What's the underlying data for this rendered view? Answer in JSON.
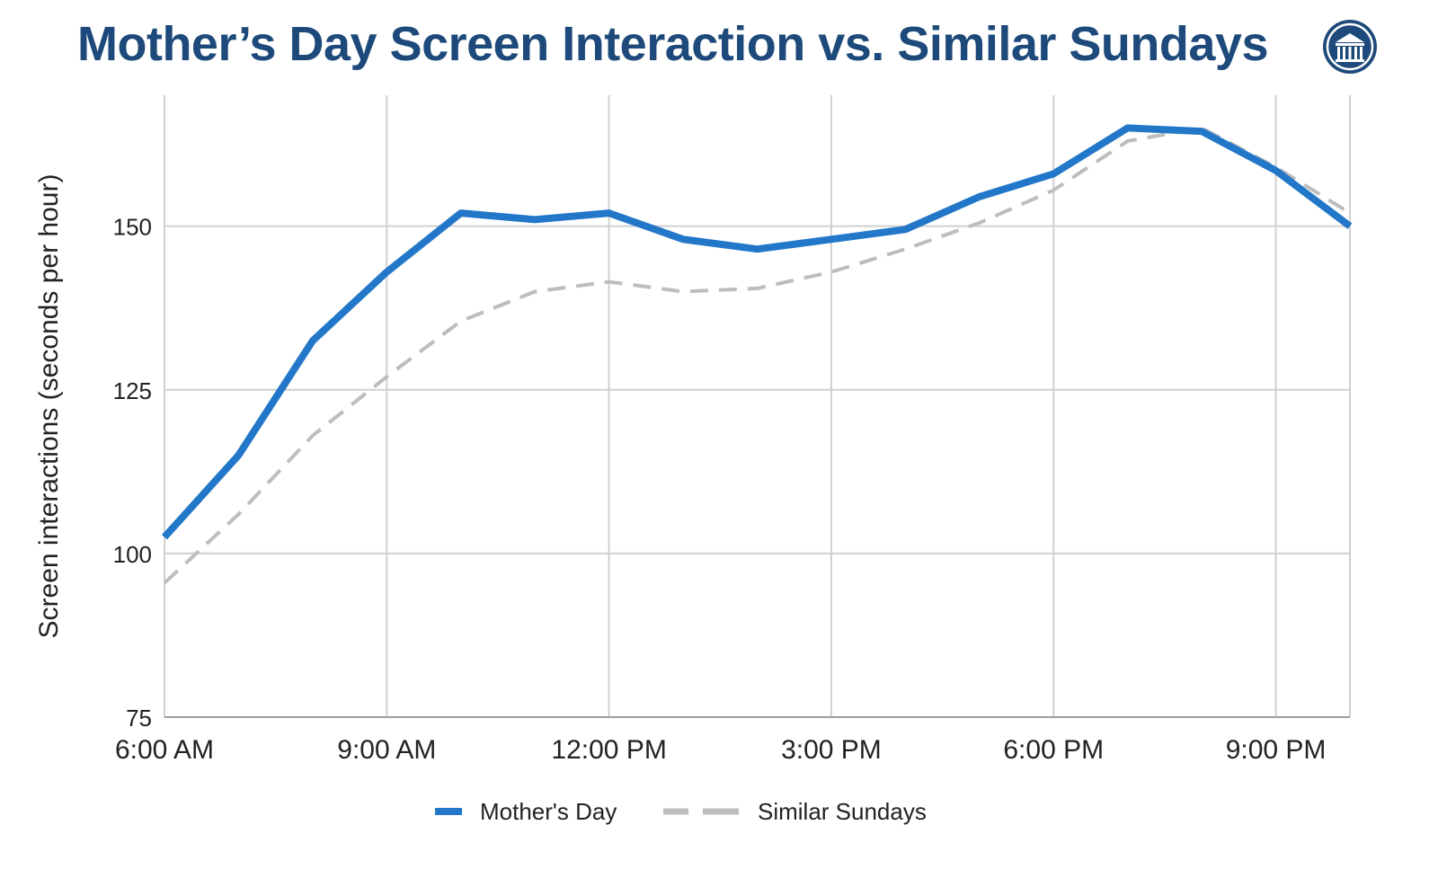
{
  "title": "Mother’s Day Screen Interaction vs. Similar Sundays",
  "logo_icon": "university-column-seal-icon",
  "colors": {
    "title": "#1d4a7a",
    "mothers_day": "#2277c9",
    "similar_sundays": "#bdbdbd",
    "grid": "#d0d0d0",
    "axis_text": "#222222"
  },
  "chart_data": {
    "type": "line",
    "title": "Mother’s Day Screen Interaction vs. Similar Sundays",
    "xlabel": "",
    "ylabel": "Screen interactions (seconds per hour)",
    "x": [
      6,
      7,
      8,
      9,
      10,
      11,
      12,
      13,
      14,
      15,
      16,
      17,
      18,
      19,
      20,
      21,
      22
    ],
    "xlim": [
      6,
      22
    ],
    "x_ticks": [
      6,
      9,
      12,
      15,
      18,
      21
    ],
    "x_tick_labels": [
      "6:00 AM",
      "9:00 AM",
      "12:00 PM",
      "3:00 PM",
      "6:00 PM",
      "9:00 PM"
    ],
    "ylim": [
      75,
      170
    ],
    "y_ticks": [
      75,
      100,
      125,
      150
    ],
    "y_tick_labels": [
      "75",
      "100",
      "125",
      "150"
    ],
    "grid": true,
    "legend_position": "bottom-center",
    "series": [
      {
        "name": "Mother's Day",
        "style": "solid",
        "color": "#2277c9",
        "values": [
          102.5,
          115,
          132.5,
          143,
          152,
          151,
          152,
          148,
          146.5,
          148,
          149.5,
          154.5,
          158,
          165,
          164.5,
          158.5,
          150
        ]
      },
      {
        "name": "Similar Sundays",
        "style": "dashed",
        "color": "#bdbdbd",
        "values": [
          95.5,
          106,
          118,
          127,
          135.5,
          140,
          141.5,
          140,
          140.5,
          143,
          146.5,
          150.5,
          155.5,
          163,
          165,
          159,
          152
        ]
      }
    ]
  }
}
